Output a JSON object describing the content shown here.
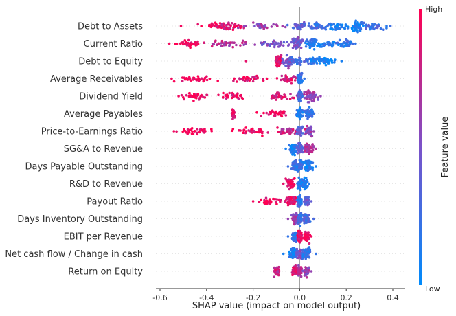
{
  "chart_data": {
    "type": "scatter",
    "subtype": "shap-beeswarm",
    "xlabel": "SHAP value (impact on model output)",
    "xlim": [
      -0.62,
      0.44
    ],
    "xticks": [
      "-0.6",
      "-0.4",
      "-0.2",
      "0.0",
      "0.2",
      "0.4"
    ],
    "xtick_values": [
      -0.6,
      -0.4,
      -0.2,
      0.0,
      0.2,
      0.4
    ],
    "colorbar": {
      "title": "Feature value",
      "high": "High",
      "low": "Low",
      "high_color": "#ff0052",
      "low_color": "#008bfb"
    },
    "features": [
      {
        "name": "Debt to Assets",
        "lo": -0.51,
        "hi": 0.39,
        "clusters": [
          [
            -0.37,
            0.05,
            0.95
          ],
          [
            -0.3,
            0.05,
            0.85
          ],
          [
            -0.15,
            0.06,
            0.6
          ],
          [
            0.0,
            0.03,
            0.4
          ],
          [
            0.08,
            0.05,
            0.25
          ],
          [
            0.17,
            0.04,
            0.1
          ],
          [
            0.25,
            0.02,
            0.1
          ],
          [
            0.31,
            0.05,
            0.25
          ]
        ]
      },
      {
        "name": "Current Ratio",
        "lo": -0.56,
        "hi": 0.24,
        "clusters": [
          [
            -0.48,
            0.05,
            0.95
          ],
          [
            -0.3,
            0.07,
            0.7
          ],
          [
            -0.12,
            0.06,
            0.5
          ],
          [
            -0.01,
            0.02,
            0.45
          ],
          [
            0.05,
            0.02,
            0.15
          ],
          [
            0.13,
            0.04,
            0.12
          ],
          [
            0.2,
            0.03,
            0.2
          ]
        ]
      },
      {
        "name": "Debt to Equity",
        "lo": -0.23,
        "hi": 0.18,
        "clusters": [
          [
            -0.09,
            0.01,
            0.9
          ],
          [
            -0.05,
            0.02,
            0.5
          ],
          [
            0.0,
            0.03,
            0.3
          ],
          [
            0.07,
            0.03,
            0.12
          ],
          [
            0.12,
            0.03,
            0.1
          ]
        ]
      },
      {
        "name": "Average Receivables",
        "lo": -0.55,
        "hi": 0.02,
        "clusters": [
          [
            -0.45,
            0.06,
            0.95
          ],
          [
            -0.22,
            0.06,
            0.9
          ],
          [
            -0.05,
            0.04,
            0.85
          ],
          [
            0.0,
            0.008,
            0.2
          ]
        ]
      },
      {
        "name": "Dividend Yield",
        "lo": -0.52,
        "hi": 0.09,
        "clusters": [
          [
            -0.45,
            0.05,
            0.95
          ],
          [
            -0.28,
            0.05,
            0.9
          ],
          [
            -0.08,
            0.06,
            0.85
          ],
          [
            0.0,
            0.01,
            0.3
          ],
          [
            0.05,
            0.02,
            0.6
          ]
        ]
      },
      {
        "name": "Average Payables",
        "lo": -0.29,
        "hi": 0.06,
        "clusters": [
          [
            -0.29,
            0.01,
            0.95
          ],
          [
            -0.1,
            0.05,
            0.95
          ],
          [
            0.0,
            0.01,
            0.15
          ],
          [
            0.04,
            0.015,
            0.2
          ]
        ]
      },
      {
        "name": "Price-to-Earnings Ratio",
        "lo": -0.54,
        "hi": 0.06,
        "clusters": [
          [
            -0.45,
            0.06,
            0.95
          ],
          [
            -0.22,
            0.06,
            0.95
          ],
          [
            -0.05,
            0.04,
            0.8
          ],
          [
            0.0,
            0.01,
            0.4
          ],
          [
            0.04,
            0.01,
            0.6
          ]
        ]
      },
      {
        "name": "SG&A to Revenue",
        "lo": -0.06,
        "hi": 0.07,
        "clusters": [
          [
            -0.03,
            0.015,
            0.1
          ],
          [
            0.0,
            0.01,
            0.35
          ],
          [
            0.04,
            0.015,
            0.7
          ]
        ]
      },
      {
        "name": "Days Payable Outstanding",
        "lo": -0.05,
        "hi": 0.07,
        "clusters": [
          [
            -0.02,
            0.012,
            0.25
          ],
          [
            0.0,
            0.01,
            0.2
          ],
          [
            0.04,
            0.015,
            0.1
          ]
        ]
      },
      {
        "name": "R&D to Revenue",
        "lo": -0.07,
        "hi": 0.04,
        "clusters": [
          [
            -0.04,
            0.015,
            0.9
          ],
          [
            0.0,
            0.01,
            0.15
          ],
          [
            0.02,
            0.01,
            0.15
          ]
        ]
      },
      {
        "name": "Payout Ratio",
        "lo": -0.2,
        "hi": 0.05,
        "clusters": [
          [
            -0.12,
            0.04,
            0.95
          ],
          [
            -0.04,
            0.02,
            0.9
          ],
          [
            0.0,
            0.008,
            0.2
          ],
          [
            0.03,
            0.01,
            0.4
          ]
        ]
      },
      {
        "name": "Days Inventory Outstanding",
        "lo": -0.05,
        "hi": 0.06,
        "clusters": [
          [
            -0.02,
            0.01,
            0.6
          ],
          [
            0.0,
            0.008,
            0.25
          ],
          [
            0.03,
            0.012,
            0.3
          ]
        ]
      },
      {
        "name": "EBIT per Revenue",
        "lo": -0.05,
        "hi": 0.05,
        "clusters": [
          [
            -0.02,
            0.01,
            0.2
          ],
          [
            0.0,
            0.008,
            0.9
          ],
          [
            0.03,
            0.01,
            0.95
          ]
        ]
      },
      {
        "name": "Net cash flow / Change in cash",
        "lo": -0.07,
        "hi": 0.07,
        "clusters": [
          [
            -0.03,
            0.015,
            0.1
          ],
          [
            0.0,
            0.01,
            0.5
          ],
          [
            0.03,
            0.015,
            0.2
          ]
        ]
      },
      {
        "name": "Return on Equity",
        "lo": -0.11,
        "hi": 0.05,
        "clusters": [
          [
            -0.1,
            0.01,
            0.8
          ],
          [
            -0.02,
            0.01,
            0.85
          ],
          [
            0.0,
            0.008,
            0.7
          ],
          [
            0.03,
            0.01,
            0.6
          ]
        ]
      }
    ]
  }
}
